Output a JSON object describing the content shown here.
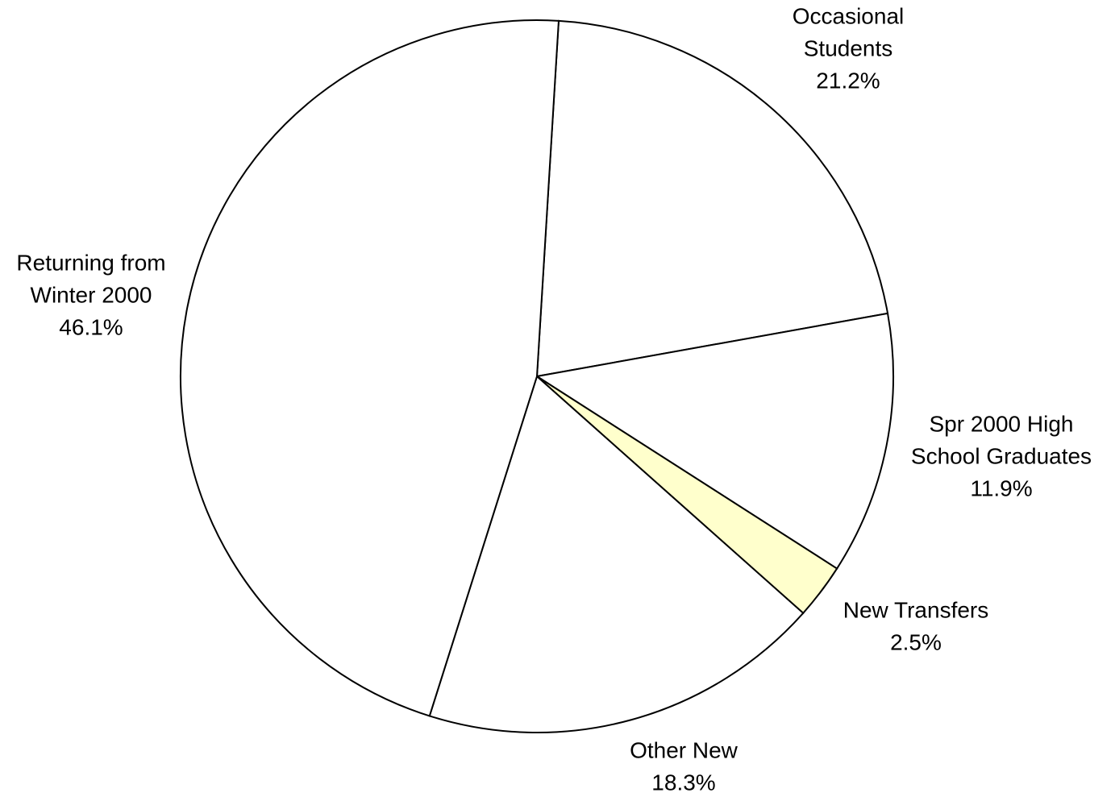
{
  "chart_data": {
    "type": "pie",
    "start_angle_deg": -86.5,
    "direction": "clockwise",
    "slices": [
      {
        "label_lines": [
          "Occasional",
          "Students"
        ],
        "value_label": "21.2%",
        "value": 21.2,
        "color": "#ffffff"
      },
      {
        "label_lines": [
          "Spr 2000 High",
          "School Graduates"
        ],
        "value_label": "11.9%",
        "value": 11.9,
        "color": "#ffffff"
      },
      {
        "label_lines": [
          "New Transfers"
        ],
        "value_label": "2.5%",
        "value": 2.5,
        "color": "#ffffcc"
      },
      {
        "label_lines": [
          "Other New"
        ],
        "value_label": "18.3%",
        "value": 18.3,
        "color": "#ffffff"
      },
      {
        "label_lines": [
          "Returning from",
          "Winter 2000"
        ],
        "value_label": "46.1%",
        "value": 46.1,
        "color": "#ffffff"
      }
    ]
  }
}
